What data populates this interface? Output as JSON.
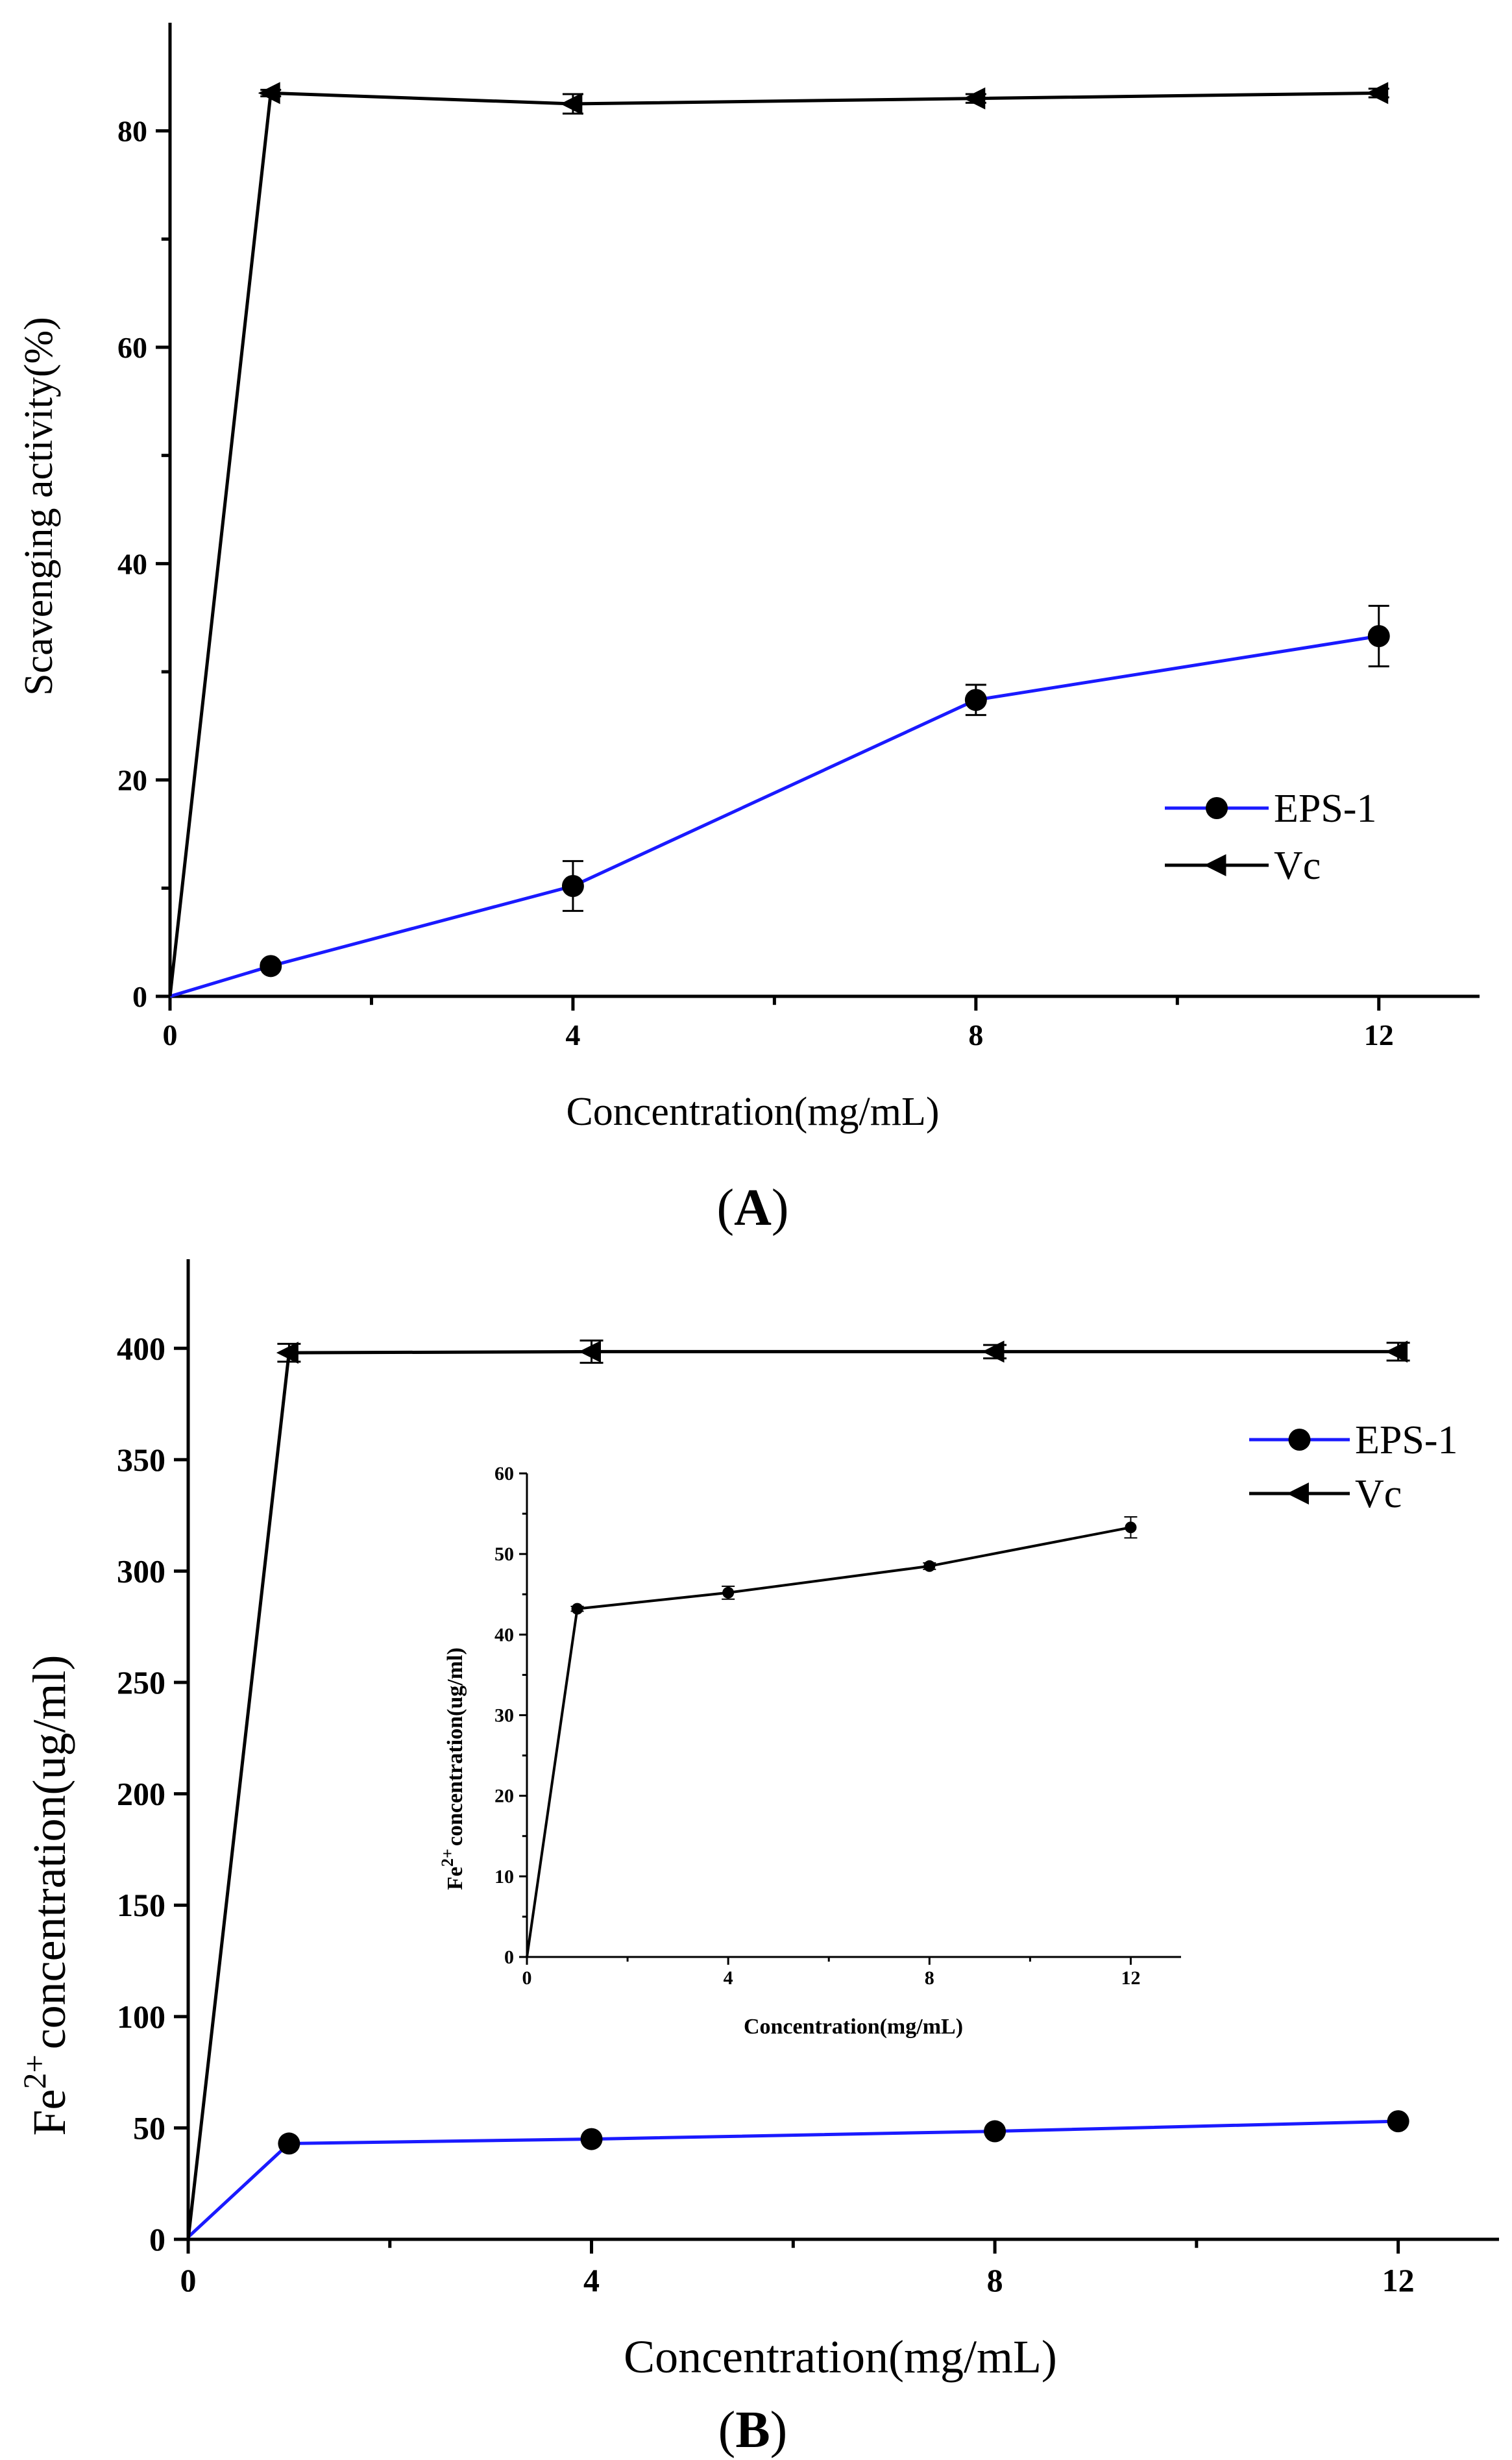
{
  "colors": {
    "eps": "#1a1aff",
    "vc": "#000000",
    "axis": "#000000",
    "marker": "#000000"
  },
  "chart_data": [
    {
      "type": "line",
      "panel_label": "A",
      "xlabel": "Concentration(mg/mL)",
      "ylabel": "Scavenging activity(%)",
      "xlim": [
        0,
        13
      ],
      "ylim": [
        0,
        90
      ],
      "xticks": [
        0,
        4,
        8,
        12
      ],
      "yticks": [
        0,
        20,
        40,
        60,
        80
      ],
      "legend_position": "lower-right",
      "series": [
        {
          "name": "EPS-1",
          "marker": "circle",
          "color": "#1a1aff",
          "x": [
            0,
            1,
            4,
            8,
            12
          ],
          "y": [
            0,
            2.8,
            10.2,
            27.4,
            33.3
          ],
          "err": [
            0,
            0.3,
            2.3,
            1.4,
            2.8
          ]
        },
        {
          "name": "Vc",
          "marker": "triangle-left",
          "color": "#000000",
          "x": [
            0,
            1,
            4,
            8,
            12
          ],
          "y": [
            0,
            83.5,
            82.5,
            83.0,
            83.5
          ],
          "err": [
            0,
            0.3,
            0.9,
            0.4,
            0.4
          ]
        }
      ]
    },
    {
      "type": "line",
      "panel_label": "B",
      "xlabel": "Concentration(mg/mL)",
      "ylabel_base": "Fe",
      "ylabel_sup": "2+",
      "ylabel_rest": "concentration(ug/ml)",
      "xlim": [
        0,
        13
      ],
      "ylim": [
        0,
        440
      ],
      "xticks": [
        0,
        4,
        8,
        12
      ],
      "yticks": [
        0,
        50,
        100,
        150,
        200,
        250,
        300,
        350,
        400
      ],
      "legend_position": "upper-right",
      "series": [
        {
          "name": "EPS-1",
          "marker": "circle",
          "color": "#1a1aff",
          "x": [
            0,
            1,
            4,
            8,
            12
          ],
          "y": [
            1,
            43,
            45,
            48.5,
            53
          ],
          "err": [
            0,
            0,
            0,
            0,
            0
          ]
        },
        {
          "name": "Vc",
          "marker": "triangle-left",
          "color": "#000000",
          "x": [
            0,
            1,
            4,
            8,
            12
          ],
          "y": [
            0,
            398,
            398.5,
            398.5,
            398.5
          ],
          "err": [
            0,
            4,
            5,
            3,
            4
          ]
        }
      ],
      "inset": {
        "type": "line",
        "xlabel": "Concentration(mg/mL)",
        "ylabel_base": "Fe",
        "ylabel_sup": "2+",
        "ylabel_rest": "concentration(ug/ml)",
        "xlim": [
          0,
          13
        ],
        "ylim": [
          0,
          60
        ],
        "xticks": [
          0,
          4,
          8,
          12
        ],
        "yticks": [
          0,
          10,
          20,
          30,
          40,
          50,
          60
        ],
        "series": [
          {
            "name": "EPS-1",
            "marker": "circle",
            "color": "#000000",
            "x": [
              0,
              1,
              4,
              8,
              12
            ],
            "y": [
              0,
              43.2,
              45.2,
              48.5,
              53.3
            ],
            "err": [
              0,
              0.3,
              0.8,
              0.4,
              1.3
            ]
          }
        ]
      }
    }
  ]
}
